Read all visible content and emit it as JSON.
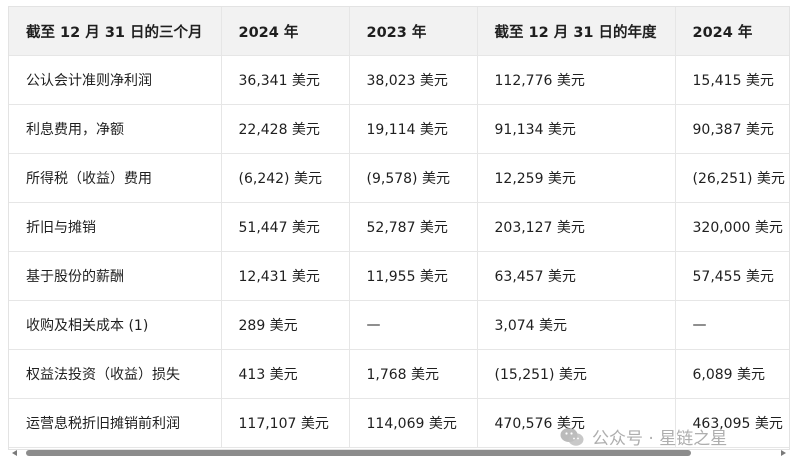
{
  "table": {
    "headers": [
      "截至 12 月 31 日的三个月",
      "2024 年",
      "2023 年",
      "截至 12 月 31 日的年度",
      "2024 年"
    ],
    "rows": [
      [
        "公认会计准则净利润",
        "36,341 美元",
        "38,023 美元",
        "112,776 美元",
        "15,415 美元"
      ],
      [
        "利息费用，净额",
        "22,428 美元",
        "19,114 美元",
        "91,134 美元",
        "90,387 美元"
      ],
      [
        "所得税（收益）费用",
        "(6,242) 美元",
        "(9,578) 美元",
        "12,259 美元",
        "(26,251) 美元"
      ],
      [
        "折旧与摊销",
        "51,447 美元",
        "52,787 美元",
        "203,127 美元",
        "320,000 美元"
      ],
      [
        "基于股份的薪酬",
        "12,431 美元",
        "11,955 美元",
        "63,457 美元",
        "57,455 美元"
      ],
      [
        "收购及相关成本 (1)",
        "289 美元",
        "—",
        "3,074 美元",
        "—"
      ],
      [
        "权益法投资（收益）损失",
        "413 美元",
        "1,768 美元",
        "(15,251) 美元",
        "6,089 美元"
      ],
      [
        "运营息税折旧摊销前利润",
        "117,107 美元",
        "114,069 美元",
        "470,576 美元",
        "463,095 美元"
      ]
    ]
  },
  "watermark": {
    "text": "公众号 · 星链之星",
    "icon": "wechat-logo-icon"
  },
  "scrollbar": {
    "orientation": "horizontal"
  }
}
